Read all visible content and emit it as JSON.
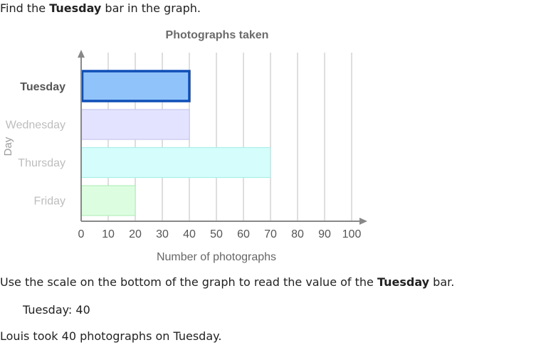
{
  "prompt": {
    "before": "Find the ",
    "highlight": "Tuesday",
    "after": " bar in the graph."
  },
  "explanation": {
    "before": "Use the scale on the bottom of the graph to read the value of the ",
    "highlight": "Tuesday",
    "after": " bar."
  },
  "reading": {
    "label": "Tuesday:",
    "value": "40"
  },
  "conclusion": "Louis took 40 photographs on Tuesday.",
  "chart_data": {
    "type": "bar",
    "orientation": "horizontal",
    "title": "Photographs taken",
    "xlabel": "Number of photographs",
    "ylabel": "Day",
    "categories": [
      "Tuesday",
      "Wednesday",
      "Thursday",
      "Friday"
    ],
    "values": [
      40,
      40,
      70,
      20
    ],
    "highlighted": "Tuesday",
    "xlim": [
      0,
      100
    ],
    "xticks": [
      0,
      10,
      20,
      30,
      40,
      50,
      60,
      70,
      80,
      90,
      100
    ],
    "grid": true,
    "colors": {
      "Tuesday": {
        "fill": "#91c3fb",
        "stroke": "#0e4eb8"
      },
      "Wednesday": {
        "fill": "#e3e3ff",
        "stroke": "#c6c6f0"
      },
      "Thursday": {
        "fill": "#d5fdfb",
        "stroke": "#a9efe9"
      },
      "Friday": {
        "fill": "#ddfde0",
        "stroke": "#b5efbc"
      }
    }
  }
}
